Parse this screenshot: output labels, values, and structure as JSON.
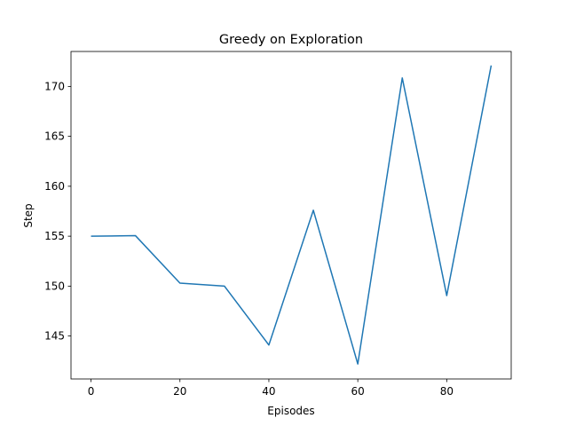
{
  "chart_data": {
    "type": "line",
    "title": "Greedy  on Exploration",
    "xlabel": "Episodes",
    "ylabel": "Step",
    "xlim": [
      -4.5,
      94.5
    ],
    "ylim": [
      140.7,
      173.5
    ],
    "xticks": [
      0,
      20,
      40,
      60,
      80
    ],
    "yticks": [
      145,
      150,
      155,
      160,
      165,
      170
    ],
    "grid": false,
    "series": [
      {
        "color": "#1f77b4",
        "x": [
          0,
          10,
          20,
          30,
          40,
          50,
          60,
          70,
          80,
          90
        ],
        "y": [
          155.0,
          155.05,
          150.3,
          150.0,
          144.1,
          157.6,
          142.2,
          170.85,
          149.05,
          172.1
        ]
      }
    ]
  }
}
